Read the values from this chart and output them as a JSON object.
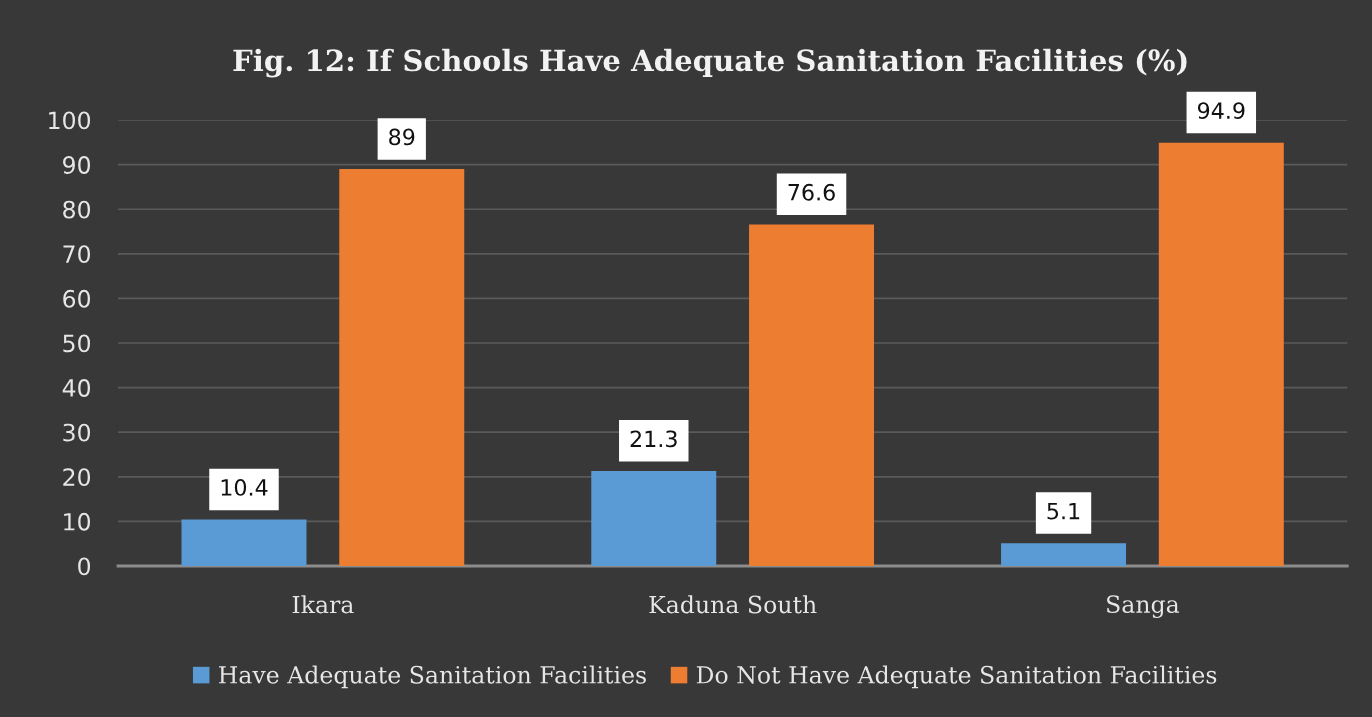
{
  "chart_data": {
    "type": "bar",
    "title": "Fig. 12: If Schools Have Adequate Sanitation Facilities (%)",
    "categories": [
      "Ikara",
      "Kaduna South",
      "Sanga"
    ],
    "series": [
      {
        "name": "Have Adequate Sanitation Facilities",
        "color": "#5b9bd5",
        "values": [
          10.4,
          21.3,
          5.1
        ]
      },
      {
        "name": "Do Not Have Adequate Sanitation Facilities",
        "color": "#ed7d31",
        "values": [
          89,
          76.6,
          94.9
        ]
      }
    ],
    "ylim": [
      0,
      100
    ],
    "yticks": [
      0,
      10,
      20,
      30,
      40,
      50,
      60,
      70,
      80,
      90,
      100
    ],
    "grid": "y",
    "legend": "bottom",
    "data_labels": true
  }
}
